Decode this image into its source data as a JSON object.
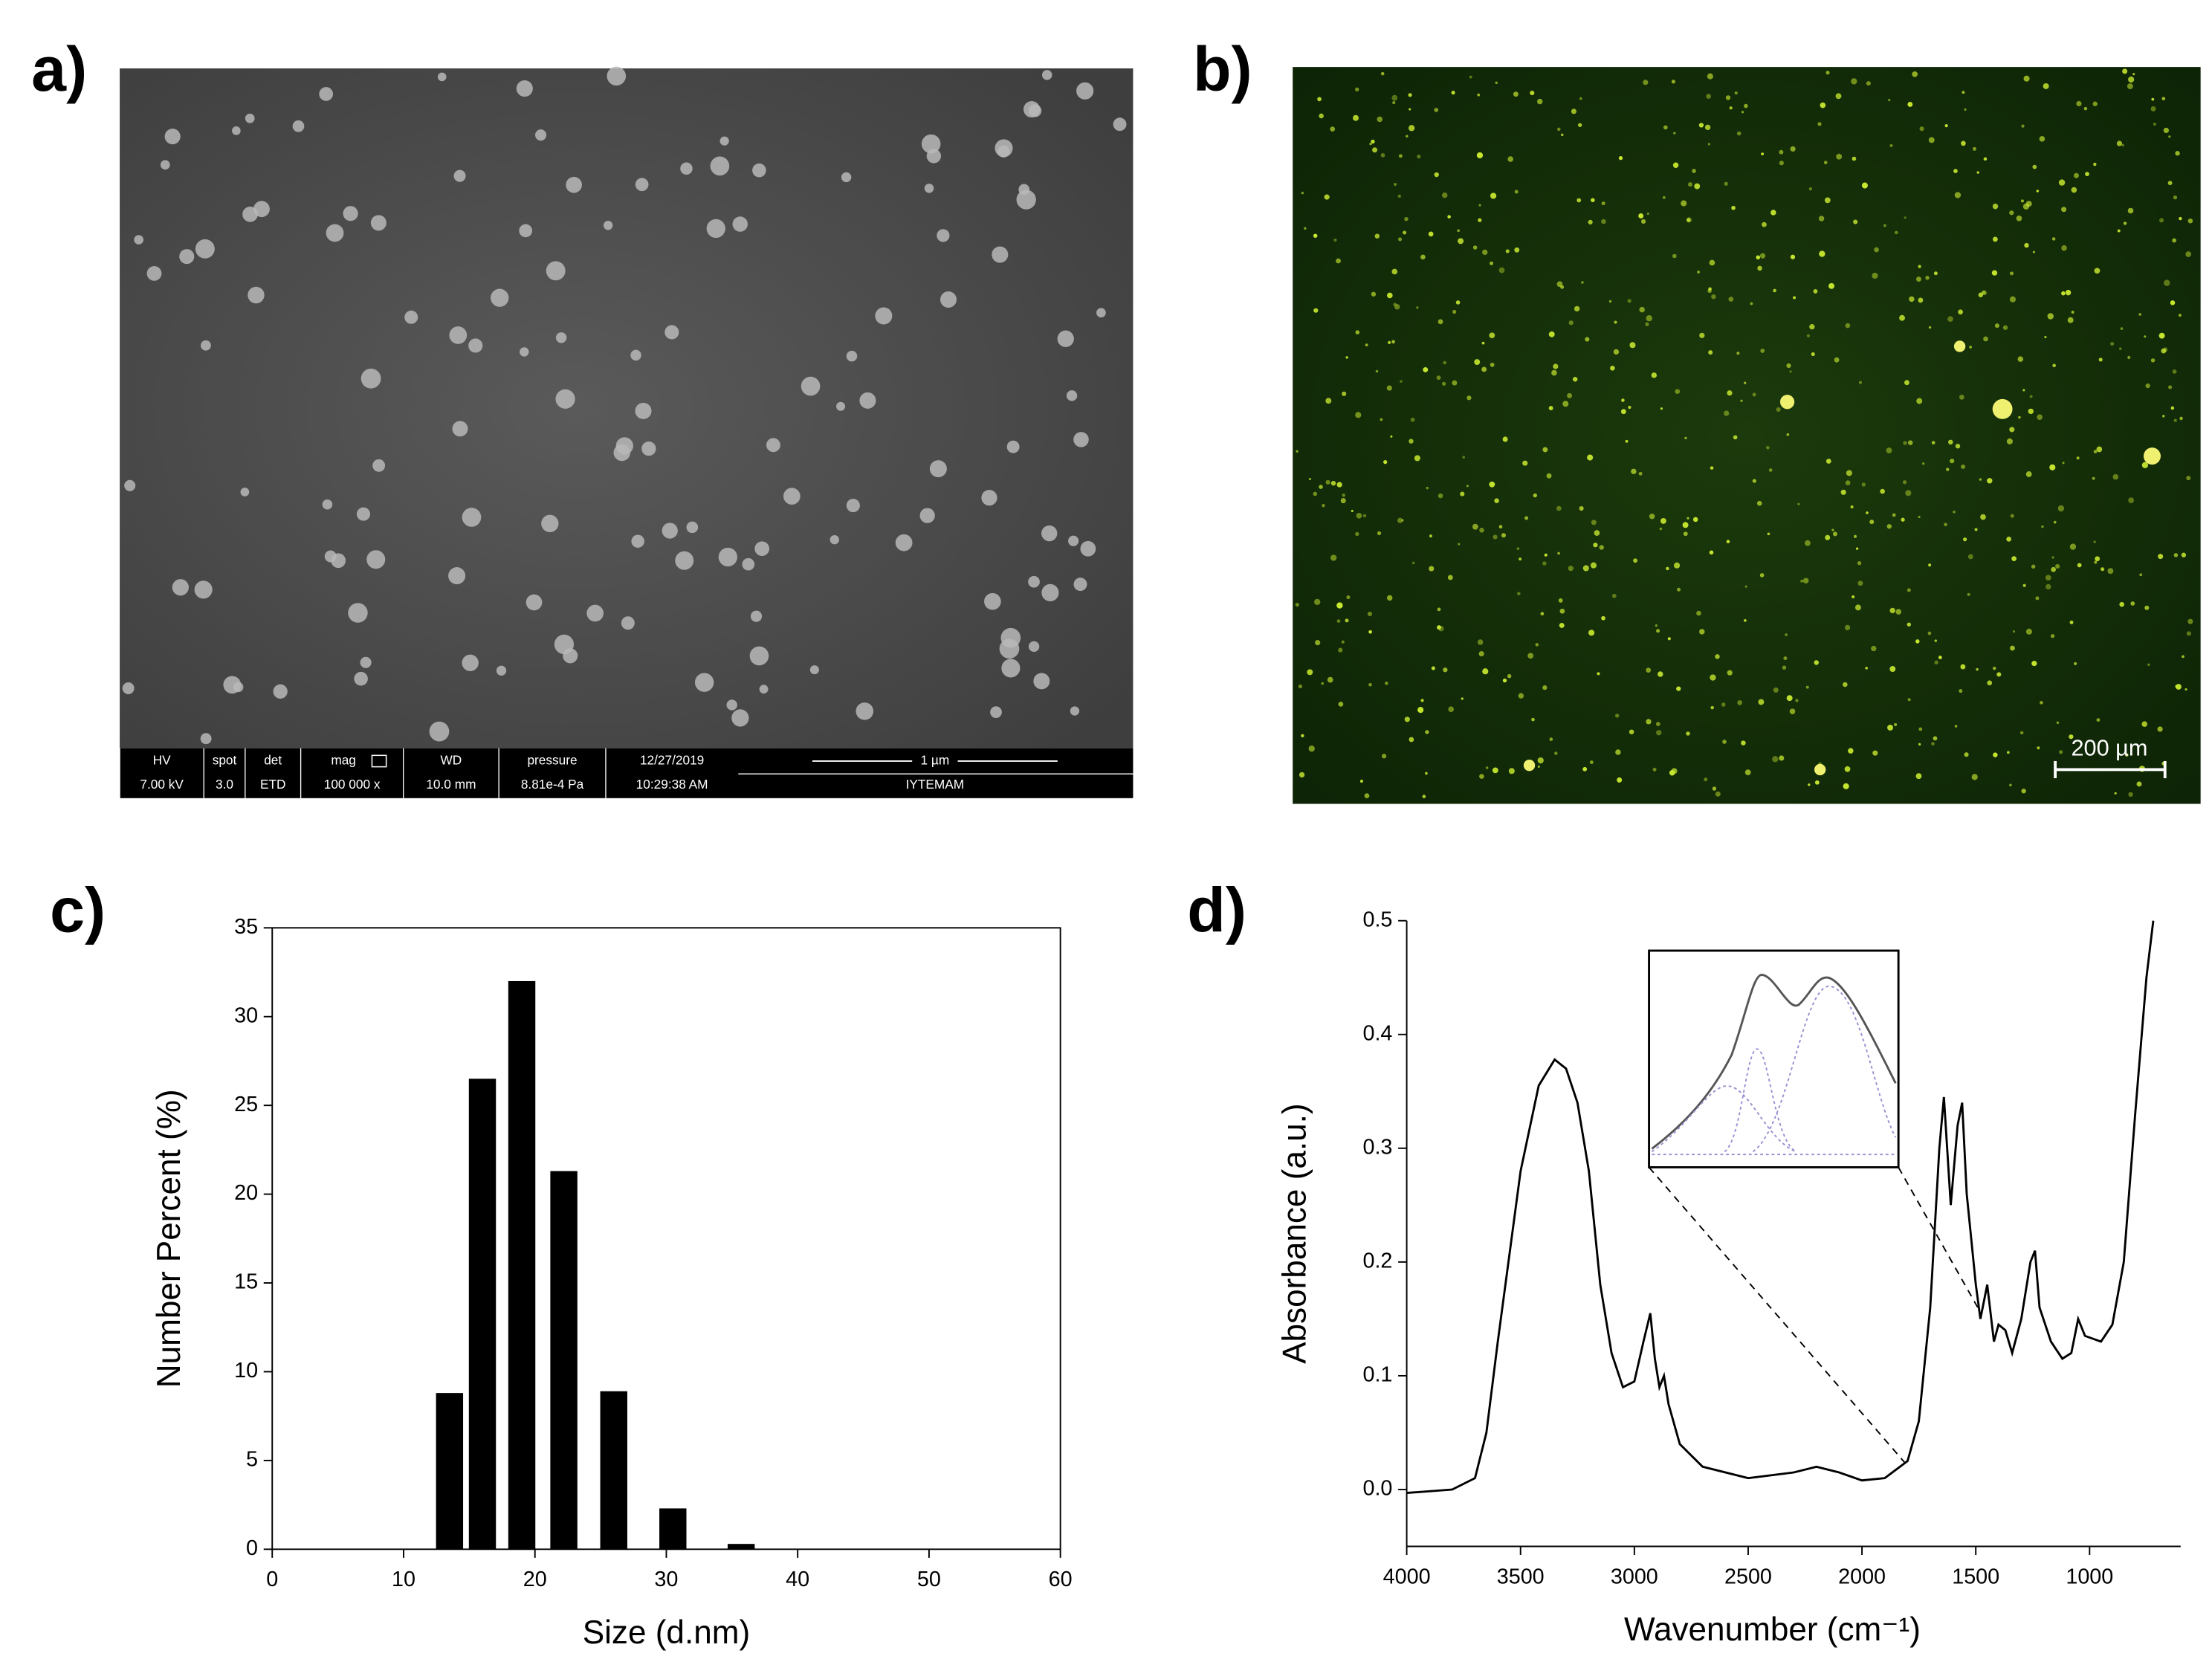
{
  "panel_labels": [
    "a)",
    "b)",
    "c)",
    "d)"
  ],
  "sem_image": {
    "info_headers": [
      "HV",
      "spot",
      "det",
      "mag",
      "WD",
      "pressure",
      "12/27/2019"
    ],
    "info_values": [
      "7.00 kV",
      "3.0",
      "ETD",
      "100 000 x",
      "10.0 mm",
      "8.81e-4 Pa",
      "10:29:38 AM"
    ],
    "scale_bar": "1 µm",
    "label": "IYTEMAM"
  },
  "fluorescence_image": {
    "scale_bar": "200 µm"
  },
  "chart_data": [
    {
      "type": "bar",
      "x_label": "Size (d.nm)",
      "y_label": "Number Percent (%)",
      "x": [
        13.5,
        16,
        19,
        22.2,
        26,
        30.5,
        35.7
      ],
      "values": [
        8.8,
        26.5,
        32,
        21.3,
        8.9,
        2.3,
        0.3
      ],
      "color": "#000000",
      "xlim": [
        0,
        60
      ],
      "xticks": [
        0,
        10,
        20,
        30,
        40,
        50,
        60
      ],
      "ylim": [
        0,
        35
      ],
      "yticks": [
        0,
        5,
        10,
        15,
        20,
        25,
        30,
        35
      ]
    },
    {
      "type": "line",
      "x_label": "Wavenumber (cm⁻¹)",
      "y_label": "Absorbance (a.u.)",
      "color": "#000000",
      "x": [
        4000,
        3800,
        3700,
        3650,
        3600,
        3500,
        3420,
        3350,
        3300,
        3250,
        3200,
        3150,
        3100,
        3050,
        3000,
        2960,
        2930,
        2910,
        2890,
        2870,
        2850,
        2800,
        2700,
        2500,
        2300,
        2200,
        2100,
        2000,
        1900,
        1800,
        1750,
        1700,
        1660,
        1640,
        1610,
        1580,
        1560,
        1540,
        1500,
        1480,
        1450,
        1420,
        1400,
        1370,
        1340,
        1300,
        1260,
        1240,
        1220,
        1170,
        1120,
        1080,
        1050,
        1020,
        950,
        900,
        850,
        800,
        750,
        720
      ],
      "values": [
        -0.003,
        0.0,
        0.01,
        0.05,
        0.13,
        0.28,
        0.355,
        0.378,
        0.37,
        0.34,
        0.28,
        0.18,
        0.12,
        0.09,
        0.095,
        0.13,
        0.155,
        0.115,
        0.09,
        0.1,
        0.075,
        0.04,
        0.02,
        0.01,
        0.015,
        0.02,
        0.015,
        0.008,
        0.01,
        0.025,
        0.06,
        0.16,
        0.3,
        0.345,
        0.25,
        0.32,
        0.34,
        0.26,
        0.18,
        0.15,
        0.18,
        0.13,
        0.145,
        0.14,
        0.12,
        0.15,
        0.2,
        0.21,
        0.16,
        0.13,
        0.115,
        0.12,
        0.15,
        0.135,
        0.13,
        0.145,
        0.2,
        0.33,
        0.45,
        0.5
      ],
      "xlim": [
        4000,
        600
      ],
      "xticks": [
        4000,
        3500,
        3000,
        2500,
        2000,
        1500,
        1000
      ],
      "ylim": [
        -0.05,
        0.5
      ],
      "yticks": [
        {
          "value": 0,
          "label": "0.0"
        },
        {
          "value": 0.1,
          "label": "0.1"
        },
        {
          "value": 0.2,
          "label": "0.2"
        },
        {
          "value": 0.3,
          "label": "0.3"
        },
        {
          "value": 0.4,
          "label": "0.4"
        },
        {
          "value": 0.5,
          "label": "0.5"
        }
      ]
    }
  ]
}
